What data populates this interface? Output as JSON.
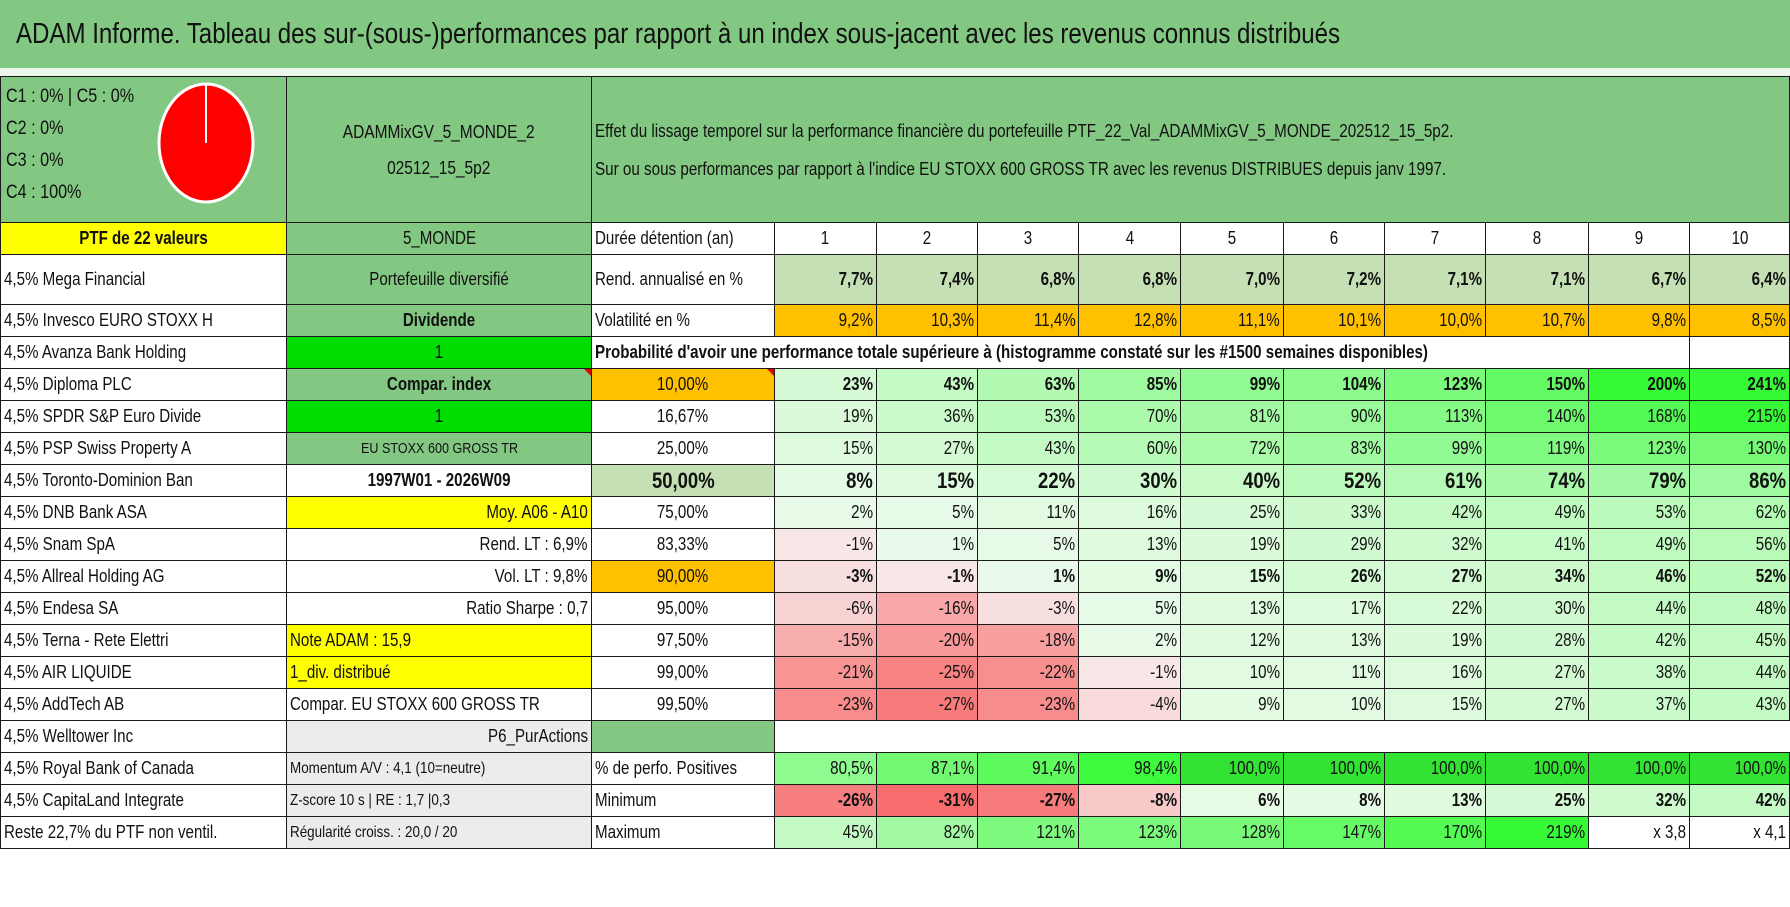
{
  "title": "ADAM Informe. Tableau des sur-(sous-)performances par rapport à un index sous-jacent avec les revenus connus distribués",
  "legend": [
    "C1 : 0% | C5 : 0%",
    "C2 : 0%",
    "C3 : 0%",
    "C4 : 100%"
  ],
  "pie": {
    "slices": [
      {
        "name": "C4",
        "value": 100,
        "color": "#ff0000"
      }
    ]
  },
  "portfolio_name": [
    "ADAMMixGV_5_MONDE_2",
    "02512_15_5p2"
  ],
  "effect_text": [
    "Effet du lissage temporel sur la performance financière du portefeuille PTF_22_Val_ADAMMixGV_5_MONDE_202512_15_5p2.",
    "Sur ou sous performances par rapport à l'indice EU STOXX 600 GROSS TR avec les revenus DISTRIBUES depuis janv 1997."
  ],
  "ptf_label": "PTF de 22 valeurs",
  "zone_label": "5_MONDE",
  "duration_label": "Durée détention (an)",
  "years": [
    "1",
    "2",
    "3",
    "4",
    "5",
    "6",
    "7",
    "8",
    "9",
    "10"
  ],
  "holdings": [
    "4,5% Mega Financial",
    "4,5% Invesco EURO STOXX H",
    "4,5% Avanza Bank Holding",
    "4,5% Diploma PLC",
    "4,5% SPDR S&P Euro Divide",
    "4,5% PSP Swiss Property A",
    "4,5% Toronto-Dominion Ban",
    "4,5% DNB Bank ASA",
    "4,5% Snam SpA",
    "4,5% Allreal Holding AG",
    "4,5% Endesa SA",
    "4,5% Terna - Rete Elettri",
    "4,5% AIR LIQUIDE",
    "4,5% AddTech AB",
    "4,5% Welltower Inc",
    "4,5% Royal Bank of Canada",
    "4,5% CapitaLand Integrate",
    "Reste 22,7% du PTF non ventil."
  ],
  "info": [
    "Portefeuille diversifié",
    "Dividende",
    "1",
    "Compar. index",
    "1",
    "EU STOXX 600 GROSS TR",
    "1997W01 - 2026W09",
    "Moy. A06 - A10",
    "Rend. LT : 6,9%",
    "Vol. LT : 9,8%",
    "Ratio Sharpe : 0,7",
    "Note ADAM : 15,9",
    "1_div. distribué",
    "Compar. EU STOXX 600 GROSS TR",
    "P6_PurActions",
    "Momentum A/V : 4,1 (10=neutre)",
    "Z-score 10 s | RE : 1,7 |0,3",
    "Régularité croiss. : 20,0 / 20"
  ],
  "rend_label": "Rend. annualisé en %",
  "rend": [
    "7,7%",
    "7,4%",
    "6,8%",
    "6,8%",
    "7,0%",
    "7,2%",
    "7,1%",
    "7,1%",
    "6,7%",
    "6,4%"
  ],
  "vol_label": "Volatilité en %",
  "vol": [
    "9,2%",
    "10,3%",
    "11,4%",
    "12,8%",
    "11,1%",
    "10,1%",
    "10,0%",
    "10,7%",
    "9,8%",
    "8,5%"
  ],
  "prob_title": "Probabilité d'avoir une performance totale supérieure à (histogramme constaté sur les #1500 semaines disponibles)",
  "quantiles": [
    {
      "q": "10,00%",
      "v": [
        "23%",
        "43%",
        "63%",
        "85%",
        "99%",
        "104%",
        "123%",
        "150%",
        "200%",
        "241%"
      ]
    },
    {
      "q": "16,67%",
      "v": [
        "19%",
        "36%",
        "53%",
        "70%",
        "81%",
        "90%",
        "113%",
        "140%",
        "168%",
        "215%"
      ]
    },
    {
      "q": "25,00%",
      "v": [
        "15%",
        "27%",
        "43%",
        "60%",
        "72%",
        "83%",
        "99%",
        "119%",
        "123%",
        "130%"
      ]
    },
    {
      "q": "50,00%",
      "v": [
        "8%",
        "15%",
        "22%",
        "30%",
        "40%",
        "52%",
        "61%",
        "74%",
        "79%",
        "86%"
      ]
    },
    {
      "q": "75,00%",
      "v": [
        "2%",
        "5%",
        "11%",
        "16%",
        "25%",
        "33%",
        "42%",
        "49%",
        "53%",
        "62%"
      ]
    },
    {
      "q": "83,33%",
      "v": [
        "-1%",
        "1%",
        "5%",
        "13%",
        "19%",
        "29%",
        "32%",
        "41%",
        "49%",
        "56%"
      ]
    },
    {
      "q": "90,00%",
      "v": [
        "-3%",
        "-1%",
        "1%",
        "9%",
        "15%",
        "26%",
        "27%",
        "34%",
        "46%",
        "52%"
      ]
    },
    {
      "q": "95,00%",
      "v": [
        "-6%",
        "-16%",
        "-3%",
        "5%",
        "13%",
        "17%",
        "22%",
        "30%",
        "44%",
        "48%"
      ]
    },
    {
      "q": "97,50%",
      "v": [
        "-15%",
        "-20%",
        "-18%",
        "2%",
        "12%",
        "13%",
        "19%",
        "28%",
        "42%",
        "45%"
      ]
    },
    {
      "q": "99,00%",
      "v": [
        "-21%",
        "-25%",
        "-22%",
        "-1%",
        "10%",
        "11%",
        "16%",
        "27%",
        "38%",
        "44%"
      ]
    },
    {
      "q": "99,50%",
      "v": [
        "-23%",
        "-27%",
        "-23%",
        "-4%",
        "9%",
        "10%",
        "15%",
        "27%",
        "37%",
        "43%"
      ]
    }
  ],
  "pos_label": "% de perfo. Positives",
  "pos": [
    "80,5%",
    "87,1%",
    "91,4%",
    "98,4%",
    "100,0%",
    "100,0%",
    "100,0%",
    "100,0%",
    "100,0%",
    "100,0%"
  ],
  "min_label": "Minimum",
  "min": [
    "-26%",
    "-31%",
    "-27%",
    "-8%",
    "6%",
    "8%",
    "13%",
    "25%",
    "32%",
    "42%"
  ],
  "max_label": "Maximum",
  "max": [
    "45%",
    "82%",
    "121%",
    "123%",
    "128%",
    "147%",
    "170%",
    "219%",
    "x 3,8",
    "x 4,1"
  ],
  "colors": {
    "header_green": "#82c882",
    "yellow": "#ffff00",
    "orange": "#ffc000",
    "bright_green": "#00dd00",
    "red_text": "#e00000"
  }
}
